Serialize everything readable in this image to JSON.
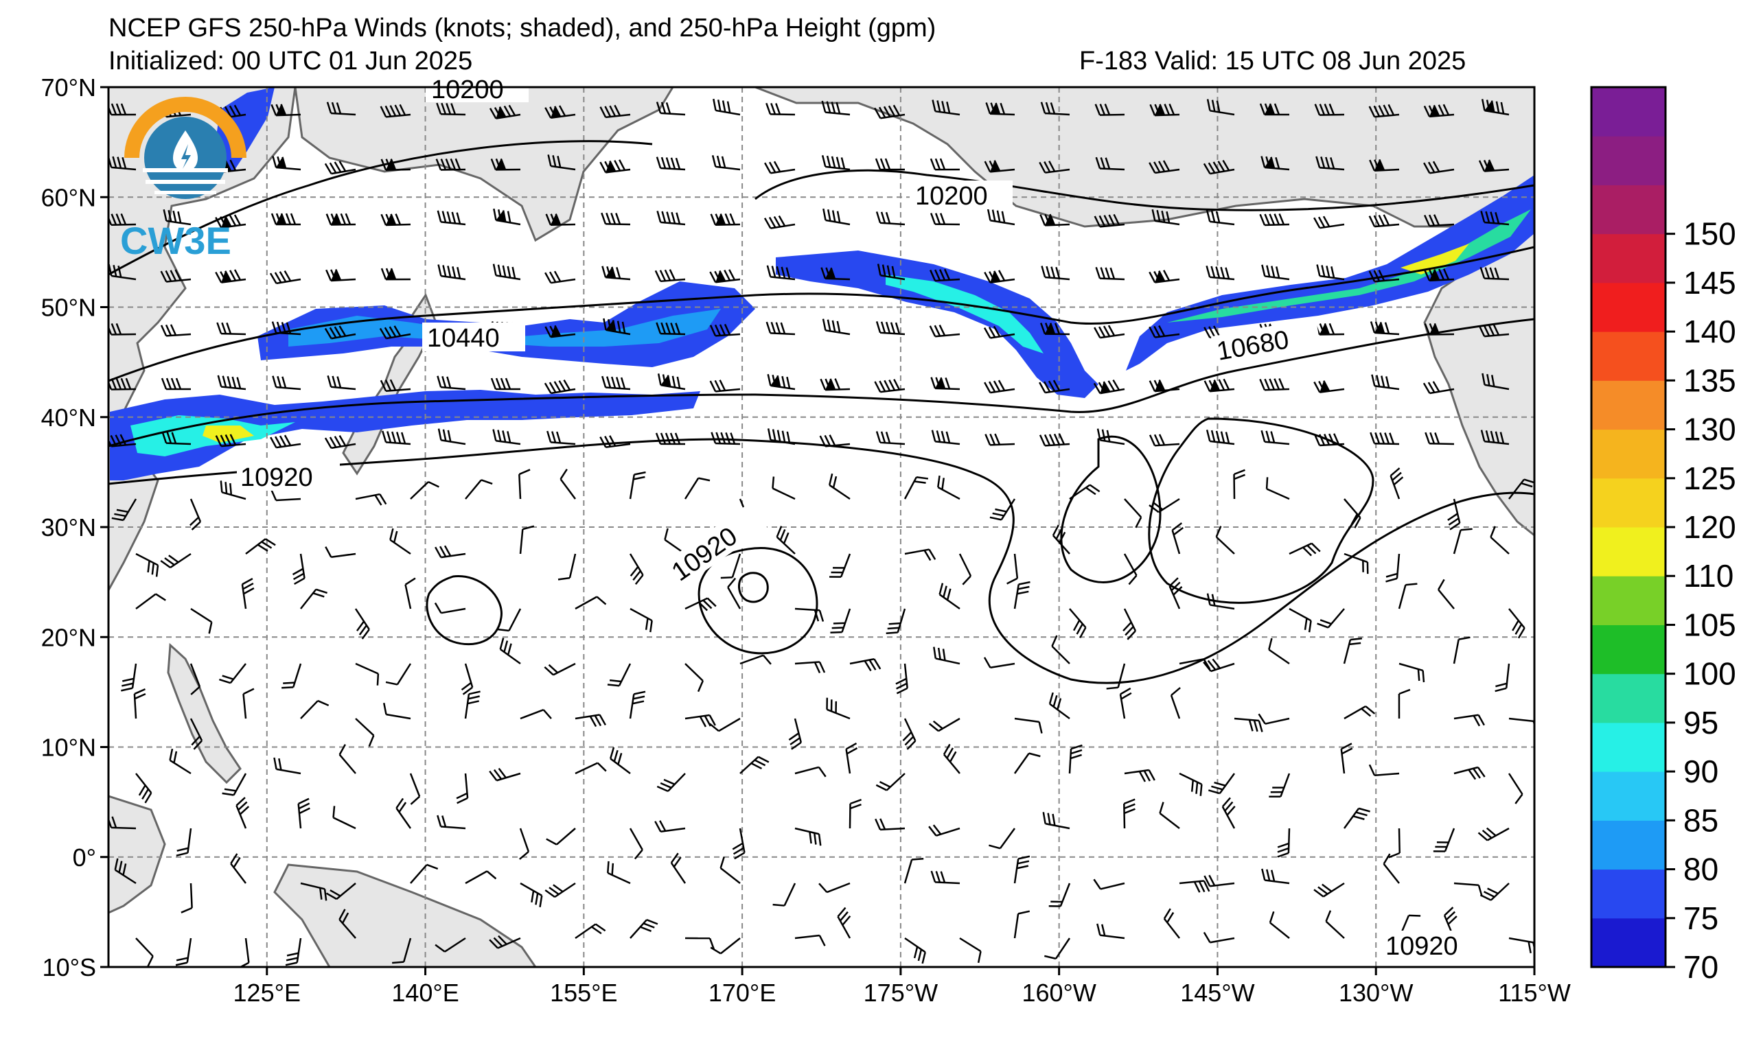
{
  "header": {
    "title": "NCEP GFS 250-hPa Winds (knots; shaded), and 250-hPa Height (gpm)",
    "initialized": "Initialized: 00 UTC 01 Jun 2025",
    "valid": "F-183  Valid: 15 UTC 08 Jun 2025"
  },
  "logo": {
    "text": "CW3E"
  },
  "map": {
    "lat_labels": [
      "70°N",
      "60°N",
      "50°N",
      "40°N",
      "30°N",
      "20°N",
      "10°N",
      "0°",
      "10°S"
    ],
    "lon_labels": [
      "125°E",
      "140°E",
      "155°E",
      "170°E",
      "175°W",
      "160°W",
      "145°W",
      "130°W",
      "115°W"
    ],
    "contour_labels": [
      "10200",
      "10200",
      "10440",
      "10680",
      "10920",
      "10920",
      "10920"
    ],
    "land_color": "#e6e6e6",
    "coast_color": "#666666"
  },
  "colorbar": {
    "ticks": [
      "70",
      "75",
      "80",
      "85",
      "90",
      "95",
      "100",
      "105",
      "110",
      "120",
      "125",
      "130",
      "135",
      "140",
      "145",
      "150"
    ],
    "colors": [
      "#1a1ad0",
      "#2848f0",
      "#1e9bf5",
      "#28c8f5",
      "#26f0e6",
      "#28dca0",
      "#1ebe28",
      "#78d028",
      "#f0f01e",
      "#f5d21e",
      "#f5b41e",
      "#f58c28",
      "#f5501e",
      "#f01e1e",
      "#d21e3c",
      "#aa1e64",
      "#8c1e82",
      "#7a1e96"
    ]
  }
}
